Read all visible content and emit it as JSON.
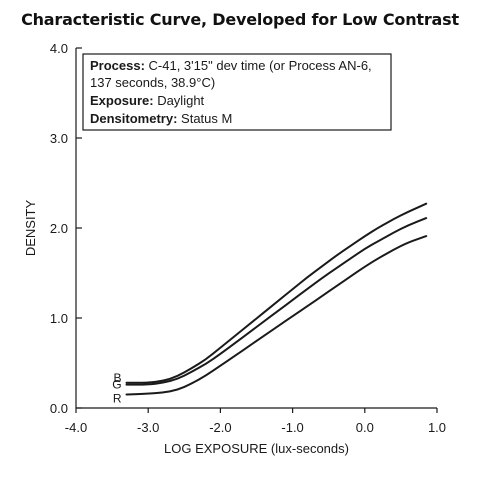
{
  "chart_data": {
    "type": "line",
    "title": "Characteristic Curve, Developed for Low Contrast",
    "xlabel": "LOG EXPOSURE (lux-seconds)",
    "ylabel": "DENSITY",
    "xlim": [
      -4.0,
      1.0
    ],
    "ylim": [
      0.0,
      4.0
    ],
    "x_ticks": [
      "-4.0",
      "-3.0",
      "-2.0",
      "-1.0",
      "0.0",
      "1.0"
    ],
    "y_ticks": [
      "0.0",
      "1.0",
      "2.0",
      "3.0",
      "4.0"
    ],
    "grid": false,
    "info_box": {
      "process_label": "Process:",
      "process_line1": " C-41, 3'15\" dev time (or Process AN-6,",
      "process_line2": "137 seconds, 38.9°C)",
      "exposure_label": "Exposure:",
      "exposure_value": " Daylight",
      "densitometry_label": "Densitometry:",
      "densitometry_value": " Status M"
    },
    "series": [
      {
        "name": "B",
        "color": "#1a1a1a",
        "points": [
          [
            -3.3,
            0.28
          ],
          [
            -3.0,
            0.28
          ],
          [
            -2.8,
            0.3
          ],
          [
            -2.6,
            0.35
          ],
          [
            -2.4,
            0.44
          ],
          [
            -2.2,
            0.54
          ],
          [
            -2.0,
            0.67
          ],
          [
            -1.8,
            0.8
          ],
          [
            -1.6,
            0.93
          ],
          [
            -1.4,
            1.06
          ],
          [
            -1.2,
            1.19
          ],
          [
            -1.0,
            1.32
          ],
          [
            -0.8,
            1.45
          ],
          [
            -0.6,
            1.57
          ],
          [
            -0.4,
            1.69
          ],
          [
            -0.2,
            1.8
          ],
          [
            0.0,
            1.91
          ],
          [
            0.2,
            2.01
          ],
          [
            0.4,
            2.1
          ],
          [
            0.6,
            2.18
          ],
          [
            0.85,
            2.27
          ]
        ]
      },
      {
        "name": "G",
        "color": "#1a1a1a",
        "points": [
          [
            -3.3,
            0.26
          ],
          [
            -3.0,
            0.26
          ],
          [
            -2.8,
            0.28
          ],
          [
            -2.6,
            0.32
          ],
          [
            -2.4,
            0.4
          ],
          [
            -2.2,
            0.49
          ],
          [
            -2.0,
            0.6
          ],
          [
            -1.8,
            0.72
          ],
          [
            -1.6,
            0.84
          ],
          [
            -1.4,
            0.96
          ],
          [
            -1.2,
            1.08
          ],
          [
            -1.0,
            1.2
          ],
          [
            -0.8,
            1.32
          ],
          [
            -0.6,
            1.44
          ],
          [
            -0.4,
            1.55
          ],
          [
            -0.2,
            1.66
          ],
          [
            0.0,
            1.77
          ],
          [
            0.2,
            1.86
          ],
          [
            0.4,
            1.95
          ],
          [
            0.6,
            2.03
          ],
          [
            0.85,
            2.11
          ]
        ]
      },
      {
        "name": "R",
        "color": "#1a1a1a",
        "points": [
          [
            -3.3,
            0.15
          ],
          [
            -3.0,
            0.16
          ],
          [
            -2.8,
            0.17
          ],
          [
            -2.6,
            0.2
          ],
          [
            -2.4,
            0.27
          ],
          [
            -2.2,
            0.36
          ],
          [
            -2.0,
            0.47
          ],
          [
            -1.8,
            0.58
          ],
          [
            -1.6,
            0.69
          ],
          [
            -1.4,
            0.8
          ],
          [
            -1.2,
            0.91
          ],
          [
            -1.0,
            1.02
          ],
          [
            -0.8,
            1.13
          ],
          [
            -0.6,
            1.24
          ],
          [
            -0.4,
            1.35
          ],
          [
            -0.2,
            1.46
          ],
          [
            0.0,
            1.57
          ],
          [
            0.2,
            1.67
          ],
          [
            0.4,
            1.76
          ],
          [
            0.6,
            1.84
          ],
          [
            0.85,
            1.91
          ]
        ]
      }
    ]
  }
}
